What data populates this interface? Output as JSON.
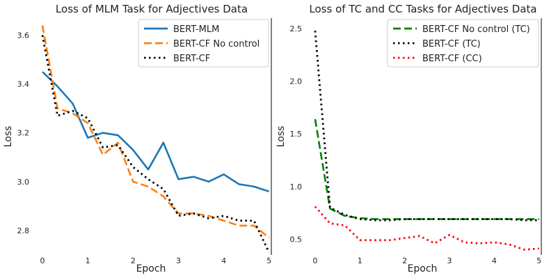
{
  "chart_data": [
    {
      "type": "line",
      "title": "Loss of MLM Task for Adjectives Data",
      "xlabel": "Epoch",
      "ylabel": "Loss",
      "xlim": [
        -0.2,
        5.05
      ],
      "ylim": [
        2.7,
        3.67
      ],
      "xticks": [
        "0",
        "1",
        "2",
        "3",
        "4",
        "5"
      ],
      "yticks": [
        "2.8",
        "3.0",
        "3.2",
        "3.4",
        "3.6"
      ],
      "legend_position": "top-right",
      "grid": false,
      "series": [
        {
          "name": "BERT-MLM",
          "color": "#1f77b4",
          "dash": "solid",
          "x": [
            0,
            0.333,
            0.667,
            1.0,
            1.333,
            1.667,
            2.0,
            2.333,
            2.667,
            3.0,
            3.333,
            3.667,
            4.0,
            4.333,
            4.667,
            5.0
          ],
          "y": [
            3.45,
            3.39,
            3.32,
            3.18,
            3.2,
            3.19,
            3.13,
            3.05,
            3.16,
            3.01,
            3.02,
            3.0,
            3.03,
            2.99,
            2.98,
            2.96
          ]
        },
        {
          "name": "BERT-CF No control",
          "color": "#ff7f0e",
          "dash": "dashed",
          "x": [
            0,
            0.333,
            0.667,
            1.0,
            1.333,
            1.667,
            2.0,
            2.333,
            2.667,
            3.0,
            3.333,
            3.667,
            4.0,
            4.333,
            4.667,
            5.0
          ],
          "y": [
            3.64,
            3.3,
            3.28,
            3.24,
            3.11,
            3.16,
            3.0,
            2.98,
            2.94,
            2.87,
            2.87,
            2.86,
            2.84,
            2.82,
            2.82,
            2.77
          ]
        },
        {
          "name": "BERT-CF",
          "color": "#000000",
          "dash": "dotted",
          "x": [
            0,
            0.333,
            0.667,
            1.0,
            1.333,
            1.667,
            2.0,
            2.333,
            2.667,
            3.0,
            3.333,
            3.667,
            4.0,
            4.333,
            4.667,
            5.0
          ],
          "y": [
            3.6,
            3.27,
            3.29,
            3.26,
            3.14,
            3.15,
            3.06,
            3.01,
            2.97,
            2.86,
            2.87,
            2.85,
            2.86,
            2.84,
            2.84,
            2.71
          ]
        }
      ]
    },
    {
      "type": "line",
      "title": "Loss of TC and CC Tasks for Adjectives Data",
      "xlabel": "Epoch",
      "ylabel": "Loss",
      "xlim": [
        -0.2,
        5.05
      ],
      "ylim": [
        0.35,
        2.6
      ],
      "xticks": [
        "0",
        "1",
        "2",
        "3",
        "4",
        "5"
      ],
      "yticks": [
        "0.5",
        "1.0",
        "1.5",
        "2.0",
        "2.5"
      ],
      "legend_position": "top-right",
      "grid": false,
      "series": [
        {
          "name": "BERT-CF No control (TC)",
          "color": "#008000",
          "dash": "dashed",
          "x": [
            0,
            0.333,
            0.667,
            1.0,
            1.333,
            1.667,
            2.0,
            2.333,
            2.667,
            3.0,
            3.333,
            3.667,
            4.0,
            4.333,
            4.667,
            5.0
          ],
          "y": [
            1.64,
            0.79,
            0.72,
            0.7,
            0.69,
            0.69,
            0.69,
            0.69,
            0.69,
            0.69,
            0.69,
            0.69,
            0.69,
            0.69,
            0.69,
            0.69
          ]
        },
        {
          "name": "BERT-CF (TC)",
          "color": "#000000",
          "dash": "dotted",
          "x": [
            0,
            0.333,
            0.667,
            1.0,
            1.333,
            1.667,
            2.0,
            2.333,
            2.667,
            3.0,
            3.333,
            3.667,
            4.0,
            4.333,
            4.667,
            5.0
          ],
          "y": [
            2.48,
            0.8,
            0.73,
            0.69,
            0.68,
            0.68,
            0.69,
            0.69,
            0.69,
            0.69,
            0.69,
            0.69,
            0.69,
            0.69,
            0.68,
            0.68
          ]
        },
        {
          "name": "BERT-CF (CC)",
          "color": "#ff0000",
          "dash": "dotted",
          "x": [
            0,
            0.333,
            0.667,
            1.0,
            1.333,
            1.667,
            2.0,
            2.333,
            2.667,
            3.0,
            3.333,
            3.667,
            4.0,
            4.333,
            4.667,
            5.0
          ],
          "y": [
            0.81,
            0.65,
            0.63,
            0.49,
            0.49,
            0.49,
            0.51,
            0.53,
            0.46,
            0.54,
            0.47,
            0.46,
            0.47,
            0.45,
            0.4,
            0.41
          ]
        }
      ]
    }
  ]
}
